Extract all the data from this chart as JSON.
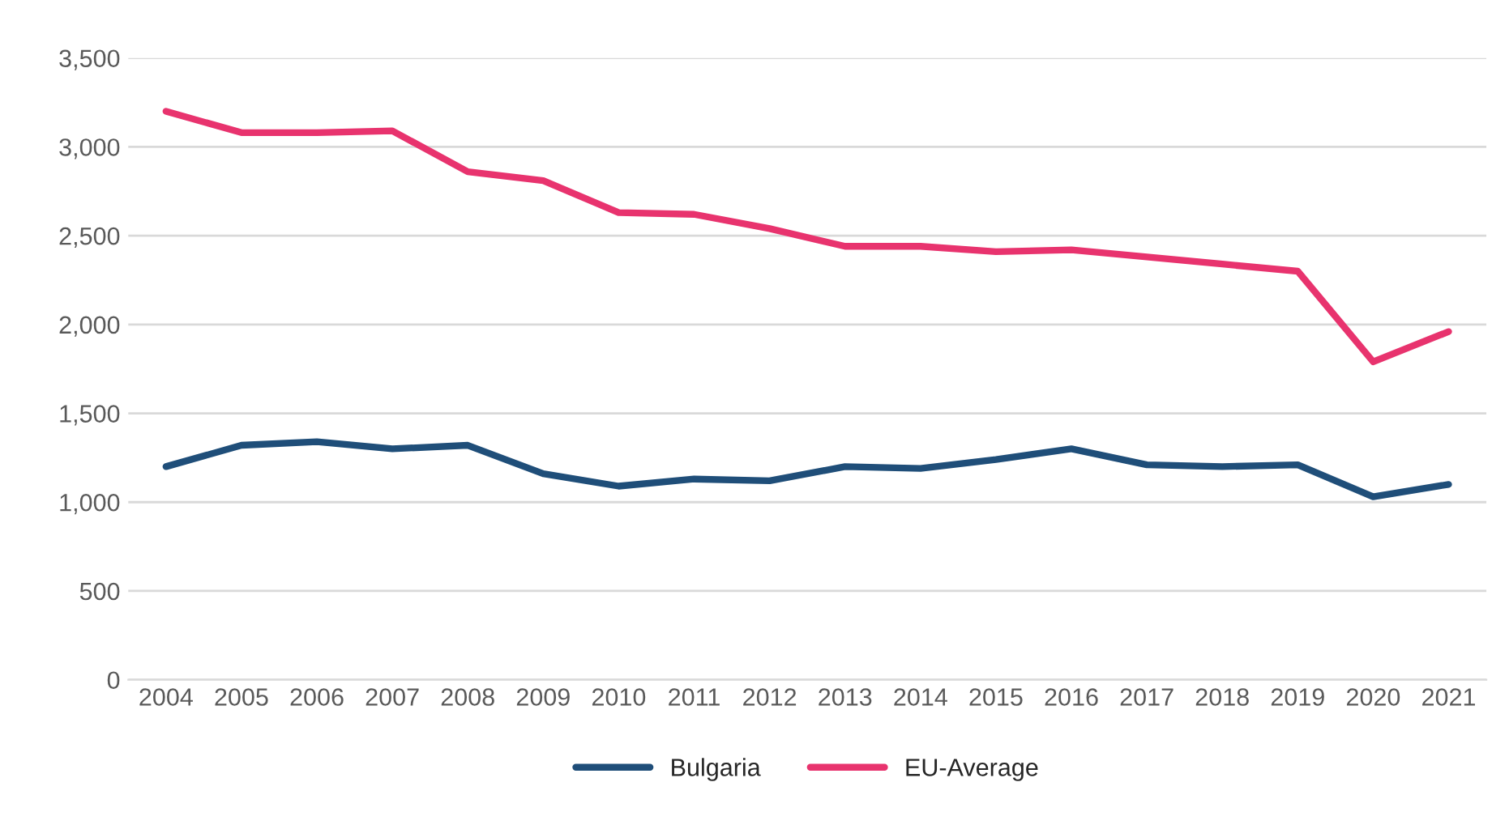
{
  "chart_data": {
    "type": "line",
    "categories": [
      "2004",
      "2005",
      "2006",
      "2007",
      "2008",
      "2009",
      "2010",
      "2011",
      "2012",
      "2013",
      "2014",
      "2015",
      "2016",
      "2017",
      "2018",
      "2019",
      "2020",
      "2021"
    ],
    "series": [
      {
        "name": "Bulgaria",
        "color": "#1f4e79",
        "values": [
          1200,
          1320,
          1340,
          1300,
          1320,
          1160,
          1090,
          1130,
          1120,
          1200,
          1190,
          1240,
          1300,
          1210,
          1200,
          1210,
          1030,
          1100
        ]
      },
      {
        "name": "EU-Average",
        "color": "#e8336e",
        "values": [
          3200,
          3080,
          3080,
          3090,
          2860,
          2810,
          2630,
          2620,
          2540,
          2440,
          2440,
          2410,
          2420,
          2380,
          2340,
          2300,
          1790,
          1960
        ]
      }
    ],
    "ylim": [
      0,
      3500
    ],
    "yticks": [
      {
        "value": 0,
        "label": "0"
      },
      {
        "value": 500,
        "label": "500"
      },
      {
        "value": 1000,
        "label": "1,000"
      },
      {
        "value": 1500,
        "label": "1,500"
      },
      {
        "value": 2000,
        "label": "2,000"
      },
      {
        "value": 2500,
        "label": "2,500"
      },
      {
        "value": 3000,
        "label": "3,000"
      },
      {
        "value": 3500,
        "label": "3,500"
      }
    ],
    "grid": "y",
    "legend": "bottom",
    "marker": "none",
    "line_style": "solid"
  }
}
